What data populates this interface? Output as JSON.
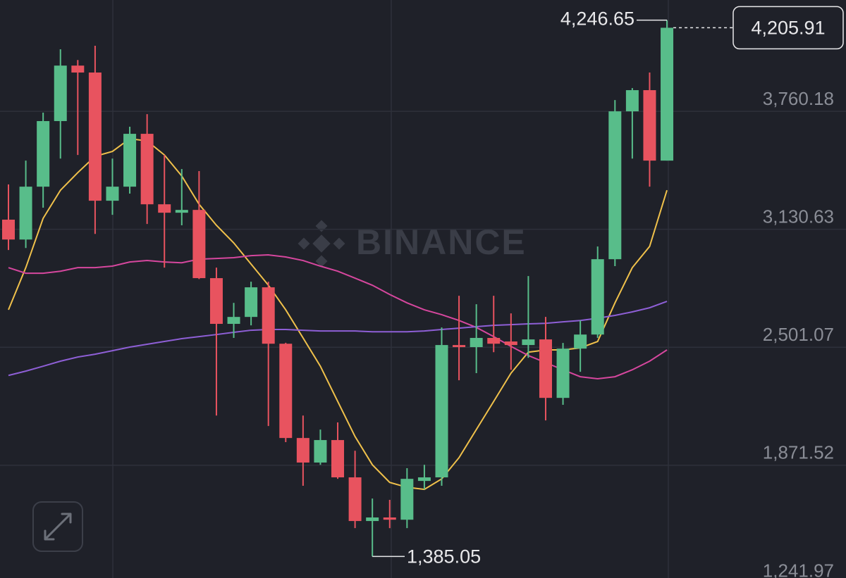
{
  "chart_data": {
    "type": "candlestick",
    "watermark": "BINANCE",
    "up_color": "#58bd8a",
    "down_color": "#e8535f",
    "open": [
      3182,
      3076,
      3358,
      3708,
      4004,
      3967,
      3283,
      3358,
      3640,
      3264,
      3219,
      3234,
      2870,
      2626,
      2663,
      2821,
      2520,
      2017,
      1886,
      2006,
      1807,
      1574,
      1593,
      1581,
      1788,
      1807,
      2513,
      2502,
      2551,
      2532,
      2513,
      2543,
      2231,
      2494,
      2569,
      2971,
      3760,
      3873,
      3497
    ],
    "high": [
      3370,
      3497,
      3753,
      4091,
      4034,
      4110,
      3508,
      3678,
      3745,
      3527,
      3452,
      3441,
      2926,
      2738,
      2851,
      2851,
      2525,
      2137,
      2062,
      2100,
      1949,
      1694,
      1687,
      1856,
      1874,
      2607,
      2776,
      2731,
      2776,
      2682,
      2881,
      2663,
      2524,
      2644,
      3039,
      3820,
      3884,
      3967,
      4246.65
    ],
    "low": [
      3020,
      3031,
      3246,
      3508,
      3527,
      3106,
      3208,
      3321,
      3159,
      2926,
      3152,
      2865,
      2137,
      2551,
      2618,
      2081,
      1995,
      1762,
      1874,
      1799,
      1536,
      1385.05,
      1536,
      1536,
      1743,
      1762,
      2325,
      2363,
      2475,
      2381,
      2445,
      2111,
      2194,
      2370,
      2551,
      2934,
      3508,
      3358,
      3497
    ],
    "close": [
      3076,
      3358,
      3708,
      4004,
      3967,
      3283,
      3358,
      3640,
      3264,
      3219,
      3234,
      2870,
      2626,
      2663,
      2821,
      2520,
      2017,
      1886,
      2006,
      1807,
      1574,
      1593,
      1581,
      1799,
      1807,
      2513,
      2502,
      2551,
      2520,
      2513,
      2543,
      2231,
      2494,
      2569,
      2971,
      3760,
      3873,
      3497,
      4205.91
    ],
    "series": [
      {
        "color": "#f0c14b",
        "values": [
          2701,
          2926,
          3189,
          3339,
          3433,
          3520,
          3546,
          3614,
          3602,
          3527,
          3415,
          3264,
          3152,
          3058,
          2945,
          2832,
          2701,
          2551,
          2400,
          2212,
          2025,
          1874,
          1780,
          1754,
          1743,
          1799,
          1912,
          2062,
          2212,
          2363,
          2475,
          2487,
          2487,
          2498,
          2532,
          2738,
          2926,
          3039,
          3339
        ]
      },
      {
        "color": "#d6479e",
        "values": [
          2926,
          2896,
          2896,
          2907,
          2926,
          2926,
          2934,
          2956,
          2964,
          2956,
          2952,
          2971,
          2975,
          2979,
          2990,
          2994,
          2983,
          2964,
          2934,
          2907,
          2870,
          2832,
          2783,
          2738,
          2701,
          2675,
          2644,
          2607,
          2558,
          2506,
          2457,
          2419,
          2381,
          2344,
          2333,
          2344,
          2381,
          2427,
          2487
        ]
      },
      {
        "color": "#8e5fd6",
        "values": [
          2351,
          2374,
          2400,
          2427,
          2449,
          2464,
          2483,
          2502,
          2517,
          2532,
          2547,
          2558,
          2569,
          2581,
          2592,
          2596,
          2596,
          2592,
          2588,
          2588,
          2588,
          2584,
          2584,
          2584,
          2588,
          2596,
          2603,
          2611,
          2618,
          2622,
          2626,
          2629,
          2637,
          2644,
          2656,
          2671,
          2690,
          2712,
          2746
        ]
      }
    ],
    "ylim": [
      1270,
      4354
    ],
    "yticks": [
      {
        "value": 3760.18,
        "label": "3,760.18"
      },
      {
        "value": 3130.63,
        "label": "3,130.63"
      },
      {
        "value": 2501.07,
        "label": "2,501.07"
      },
      {
        "value": 1871.52,
        "label": "1,871.52"
      },
      {
        "value": 1241.97,
        "label": "1,241.97"
      }
    ],
    "grid": true,
    "high_label": {
      "value": 4246.65,
      "label": "4,246.65"
    },
    "low_label": {
      "value": 1385.05,
      "label": "1,385.05"
    },
    "last_price": {
      "value": 4205.91,
      "label": "4,205.91"
    }
  }
}
